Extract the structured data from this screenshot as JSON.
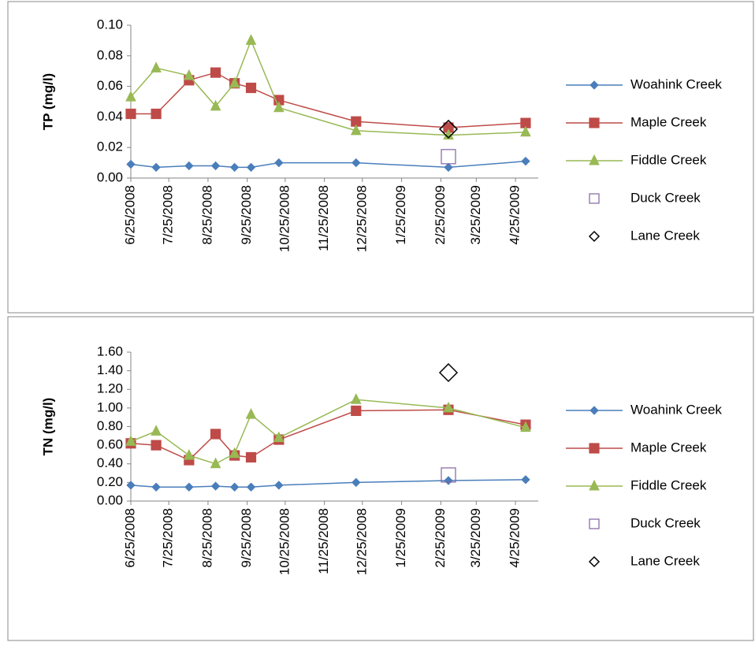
{
  "chart_data": [
    {
      "type": "line",
      "y_label": "TP (mg/l)",
      "x": [
        "6/25/2008",
        "7/15/2008",
        "8/10/2008",
        "8/31/2008",
        "9/15/2008",
        "9/28/2008",
        "10/20/2008",
        "12/20/2008",
        "3/3/2009",
        "5/3/2009"
      ],
      "xlim": [
        "6/25/2008",
        "5/13/2009"
      ],
      "xticks": [
        "6/25/2008",
        "7/25/2008",
        "8/25/2008",
        "9/25/2008",
        "10/25/2008",
        "11/25/2008",
        "12/25/2008",
        "1/25/2009",
        "2/25/2009",
        "3/25/2009",
        "4/25/2009"
      ],
      "ylim": [
        0,
        0.1
      ],
      "yticks": [
        {
          "value": 0,
          "label": "0.00"
        },
        {
          "value": 0.02,
          "label": "0.02"
        },
        {
          "value": 0.04,
          "label": "0.04"
        },
        {
          "value": 0.06,
          "label": "0.06"
        },
        {
          "value": 0.08,
          "label": "0.08"
        },
        {
          "value": 0.1,
          "label": "0.10"
        }
      ],
      "legend": "right",
      "series": [
        {
          "name": "Woahink Creek",
          "color": "#4a7ebb",
          "marker": "diamond",
          "line": true,
          "values": [
            0.009,
            0.007,
            0.008,
            0.008,
            0.007,
            0.007,
            0.01,
            0.01,
            0.007,
            0.011
          ]
        },
        {
          "name": "Maple Creek",
          "color": "#be4b48",
          "marker": "square",
          "line": true,
          "values": [
            0.042,
            0.042,
            0.064,
            0.069,
            0.062,
            0.059,
            0.051,
            0.037,
            0.033,
            0.036
          ]
        },
        {
          "name": "Fiddle Creek",
          "color": "#98b954",
          "marker": "triangle",
          "line": true,
          "values": [
            0.053,
            0.072,
            0.067,
            0.047,
            0.062,
            0.09,
            0.046,
            0.031,
            0.028,
            0.03
          ]
        },
        {
          "name": "Duck Creek",
          "color": "#8064a2",
          "marker": "open-square",
          "line": false,
          "values": [
            null,
            null,
            null,
            null,
            null,
            null,
            null,
            null,
            0.014,
            null
          ]
        },
        {
          "name": "Lane Creek",
          "color": "#000000",
          "marker": "open-diamond",
          "line": false,
          "values": [
            null,
            null,
            null,
            null,
            null,
            null,
            null,
            null,
            0.032,
            null
          ]
        }
      ]
    },
    {
      "type": "line",
      "y_label": "TN (mg/l)",
      "x": [
        "6/25/2008",
        "7/15/2008",
        "8/10/2008",
        "8/31/2008",
        "9/15/2008",
        "9/28/2008",
        "10/20/2008",
        "12/20/2008",
        "3/3/2009",
        "5/3/2009"
      ],
      "xlim": [
        "6/25/2008",
        "5/13/2009"
      ],
      "xticks": [
        "6/25/2008",
        "7/25/2008",
        "8/25/2008",
        "9/25/2008",
        "10/25/2008",
        "11/25/2008",
        "12/25/2008",
        "1/25/2009",
        "2/25/2009",
        "3/25/2009",
        "4/25/2009"
      ],
      "ylim": [
        0,
        1.6
      ],
      "yticks": [
        {
          "value": 0,
          "label": "0.00"
        },
        {
          "value": 0.2,
          "label": "0.20"
        },
        {
          "value": 0.4,
          "label": "0.40"
        },
        {
          "value": 0.6,
          "label": "0.60"
        },
        {
          "value": 0.8,
          "label": "0.80"
        },
        {
          "value": 1.0,
          "label": "1.00"
        },
        {
          "value": 1.2,
          "label": "1.20"
        },
        {
          "value": 1.4,
          "label": "1.40"
        },
        {
          "value": 1.6,
          "label": "1.60"
        }
      ],
      "legend": "right",
      "series": [
        {
          "name": "Woahink Creek",
          "color": "#4a7ebb",
          "marker": "diamond",
          "line": true,
          "values": [
            0.17,
            0.15,
            0.15,
            0.16,
            0.15,
            0.15,
            0.17,
            0.2,
            0.22,
            0.23
          ]
        },
        {
          "name": "Maple Creek",
          "color": "#be4b48",
          "marker": "square",
          "line": true,
          "values": [
            0.62,
            0.6,
            0.44,
            0.72,
            0.49,
            0.47,
            0.66,
            0.97,
            0.98,
            0.82
          ]
        },
        {
          "name": "Fiddle Creek",
          "color": "#98b954",
          "marker": "triangle",
          "line": true,
          "values": [
            0.64,
            0.75,
            0.49,
            0.4,
            0.51,
            0.93,
            0.68,
            1.09,
            1.0,
            0.79
          ]
        },
        {
          "name": "Duck Creek",
          "color": "#8064a2",
          "marker": "open-square",
          "line": false,
          "values": [
            null,
            null,
            null,
            null,
            null,
            null,
            null,
            null,
            0.28,
            null
          ]
        },
        {
          "name": "Lane Creek",
          "color": "#000000",
          "marker": "open-diamond",
          "line": false,
          "values": [
            null,
            null,
            null,
            null,
            null,
            null,
            null,
            null,
            1.38,
            null
          ]
        }
      ]
    }
  ]
}
